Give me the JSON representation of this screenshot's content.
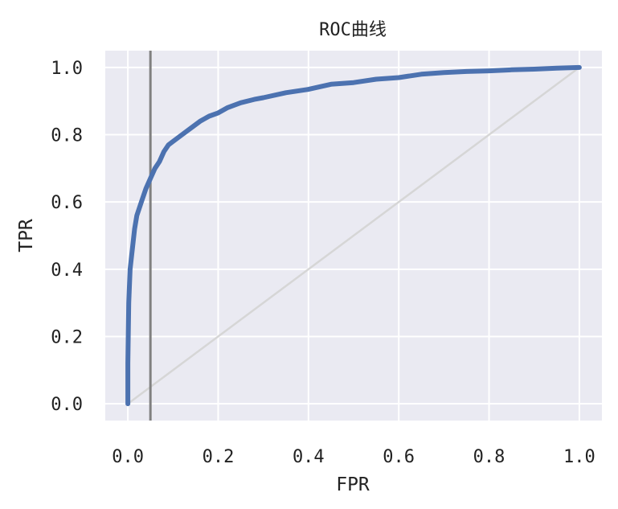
{
  "chart_data": {
    "type": "line",
    "title": "ROC曲线",
    "xlabel": "FPR",
    "ylabel": "TPR",
    "xlim": [
      -0.05,
      1.05
    ],
    "ylim": [
      -0.05,
      1.05
    ],
    "xticks": [
      "0.0",
      "0.2",
      "0.4",
      "0.6",
      "0.8",
      "1.0"
    ],
    "yticks": [
      "0.0",
      "0.2",
      "0.4",
      "0.6",
      "0.8",
      "1.0"
    ],
    "grid": true,
    "background": "#EAEAF2",
    "series": [
      {
        "color": "#4C72B0",
        "x": [
          0.0,
          0.0,
          0.002,
          0.005,
          0.01,
          0.015,
          0.02,
          0.03,
          0.04,
          0.05,
          0.06,
          0.07,
          0.08,
          0.09,
          0.1,
          0.12,
          0.14,
          0.16,
          0.18,
          0.2,
          0.22,
          0.25,
          0.28,
          0.3,
          0.35,
          0.4,
          0.45,
          0.5,
          0.55,
          0.6,
          0.65,
          0.7,
          0.75,
          0.8,
          0.85,
          0.9,
          0.95,
          1.0
        ],
        "y": [
          0.0,
          0.12,
          0.3,
          0.4,
          0.46,
          0.52,
          0.56,
          0.6,
          0.64,
          0.67,
          0.7,
          0.72,
          0.75,
          0.77,
          0.78,
          0.8,
          0.82,
          0.84,
          0.855,
          0.865,
          0.88,
          0.895,
          0.905,
          0.91,
          0.925,
          0.935,
          0.95,
          0.955,
          0.965,
          0.97,
          0.98,
          0.985,
          0.988,
          0.99,
          0.993,
          0.995,
          0.998,
          1.0
        ]
      }
    ],
    "reference_line": {
      "x": [
        0,
        1
      ],
      "y": [
        0,
        1
      ],
      "color": "#D6D6D6"
    },
    "vertical_line": {
      "x": 0.05,
      "color": "#808080"
    }
  }
}
